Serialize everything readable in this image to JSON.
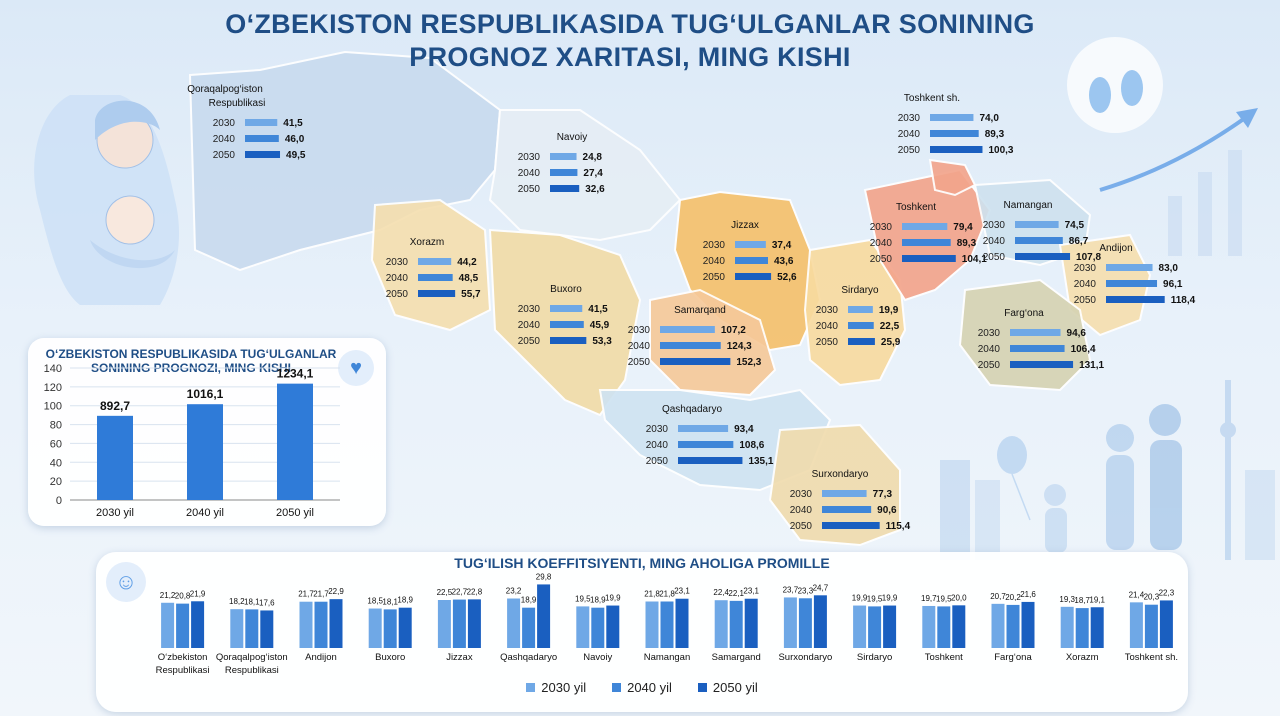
{
  "title": {
    "line1": "O‘ZBEKISTON RESPUBLIKASIDA TUG‘ULGANLAR SONINING",
    "line2": "PROGNOZ XARITASI, MING KISHI"
  },
  "colors": {
    "bar_2030": "#6fa8e6",
    "bar_2040": "#3f86d8",
    "bar_2050": "#1a5fc0",
    "title": "#1f4e86"
  },
  "decor": {
    "mother_icon": "mother-baby-illustration",
    "feet_icon": "baby-feet-icon",
    "heart_icon": "heart-icon",
    "baby_face_icon": "baby-face-icon",
    "family_icon": "family-silhouette",
    "city_icon": "city-skyline",
    "growth_arrow_icon": "growth-arrow-icon"
  },
  "chart_data": [
    {
      "type": "bar",
      "name": "map",
      "title": "O‘ZBEKISTON RESPUBLIKASIDA TUG‘ULGANLAR SONINING PROGNOZ XARITASI, MING KISHI",
      "years": [
        "2030",
        "2040",
        "2050"
      ],
      "regions": [
        {
          "name": "Qoraqalpog‘iston Respublikasi",
          "values": [
            "41,5",
            "46,0",
            "49,5"
          ],
          "color": "#c9dbef"
        },
        {
          "name": "Navoiy",
          "values": [
            "24,8",
            "27,4",
            "32,6"
          ],
          "color": "#e6eef5"
        },
        {
          "name": "Xorazm",
          "values": [
            "44,2",
            "48,5",
            "55,7"
          ],
          "color": "#f5dfb0"
        },
        {
          "name": "Buxoro",
          "values": [
            "41,5",
            "45,9",
            "53,3"
          ],
          "color": "#f1dca8"
        },
        {
          "name": "Jizzax",
          "values": [
            "37,4",
            "43,6",
            "52,6"
          ],
          "color": "#f5c16c"
        },
        {
          "name": "Samarqand",
          "values": [
            "107,2",
            "124,3",
            "152,3"
          ],
          "color": "#f6c99a"
        },
        {
          "name": "Sirdaryo",
          "values": [
            "19,9",
            "22,5",
            "25,9"
          ],
          "color": "#f8dba0"
        },
        {
          "name": "Toshkent",
          "values": [
            "79,4",
            "89,3",
            "104,1"
          ],
          "color": "#f3a58c"
        },
        {
          "name": "Toshkent sh.",
          "values": [
            "74,0",
            "89,3",
            "100,3"
          ],
          "color": "#f3a58c"
        },
        {
          "name": "Namangan",
          "values": [
            "74,5",
            "86,7",
            "107,8"
          ],
          "color": "#cfe2ef"
        },
        {
          "name": "Andijon",
          "values": [
            "83,0",
            "96,1",
            "118,4"
          ],
          "color": "#f6dfb0"
        },
        {
          "name": "Farg‘ona",
          "values": [
            "94,6",
            "106,4",
            "131,1"
          ],
          "color": "#d6d3b3"
        },
        {
          "name": "Qashqadaryo",
          "values": [
            "93,4",
            "108,6",
            "135,1"
          ],
          "color": "#cfe3f2"
        },
        {
          "name": "Surxondaryo",
          "values": [
            "77,3",
            "90,6",
            "115,4"
          ],
          "color": "#f0dcae"
        }
      ]
    },
    {
      "type": "bar",
      "name": "births-forecast",
      "title": "O‘ZBEKISTON RESPUBLIKASIDA TUG‘ULGANLAR SONINING PROGNOZI, MING KISHI",
      "categories": [
        "2030 yil",
        "2040 yil",
        "2050 yil"
      ],
      "values": [
        892.7,
        1016.1,
        1234.1
      ],
      "value_labels": [
        "892,7",
        "1016,1",
        "1234,1"
      ],
      "yticks": [
        "0",
        "20",
        "40",
        "60",
        "80",
        "100",
        "120",
        "140"
      ],
      "ylim": [
        0,
        1400
      ]
    },
    {
      "type": "bar",
      "name": "fertility-rate",
      "title": "TUG‘ILISH KOEFFITSIYENTI, MING AHOLIGA PROMILLE",
      "categories": [
        "O‘zbekiston Respublikasi",
        "Qoraqalpog‘iston Respublikasi",
        "Andijon",
        "Buxoro",
        "Jizzax",
        "Qashqadaryo",
        "Navoiy",
        "Namangan",
        "Samargand",
        "Surxondaryo",
        "Sirdaryo",
        "Toshkent",
        "Farg‘ona",
        "Xorazm",
        "Toshkent sh."
      ],
      "series": [
        {
          "name": "2030 yil",
          "values": [
            21.2,
            18.2,
            21.7,
            18.5,
            22.5,
            23.2,
            19.5,
            21.8,
            22.4,
            23.7,
            19.9,
            19.7,
            20.7,
            19.3,
            21.4
          ]
        },
        {
          "name": "2040 yil",
          "values": [
            20.8,
            18.1,
            21.7,
            18.1,
            22.7,
            18.9,
            18.9,
            21.8,
            22.1,
            23.3,
            19.5,
            19.5,
            20.2,
            18.7,
            20.3
          ]
        },
        {
          "name": "2050 yil",
          "values": [
            21.9,
            17.6,
            22.9,
            18.9,
            22.8,
            29.8,
            19.9,
            23.1,
            23.1,
            24.7,
            19.9,
            20.0,
            21.6,
            19.1,
            22.3
          ]
        }
      ],
      "value_labels": [
        [
          "21,2",
          "20,8",
          "21,9"
        ],
        [
          "18,2",
          "18,1",
          "17,6"
        ],
        [
          "21,7",
          "21,7",
          "22,9"
        ],
        [
          "18,5",
          "18,1",
          "18,9"
        ],
        [
          "22,5",
          "22,7",
          "22,8"
        ],
        [
          "23,2",
          "18,9",
          "29,8"
        ],
        [
          "19,5",
          "18,9",
          "19,9"
        ],
        [
          "21,8",
          "21,8",
          "23,1"
        ],
        [
          "22,4",
          "22,1",
          "23,1"
        ],
        [
          "23,7",
          "23,3",
          "24,7"
        ],
        [
          "19,9",
          "19,5",
          "19,9"
        ],
        [
          "19,7",
          "19,5",
          "20,0"
        ],
        [
          "20,7",
          "20,2",
          "21,6"
        ],
        [
          "19,3",
          "18,7",
          "19,1"
        ],
        [
          "21,4",
          "20,3",
          "22,3"
        ]
      ],
      "legend": [
        "2030 yil",
        "2040 yil",
        "2050 yil"
      ]
    }
  ]
}
